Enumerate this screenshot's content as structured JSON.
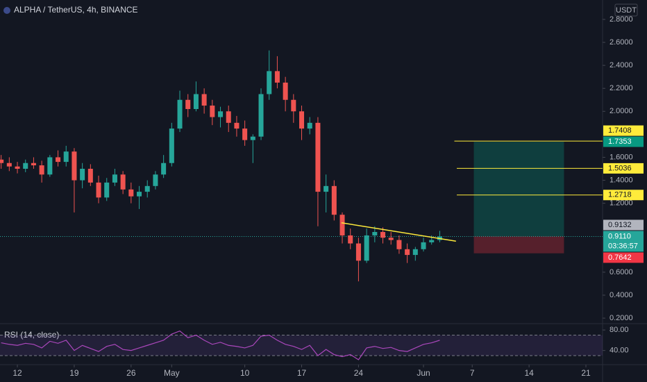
{
  "header": {
    "title": "ALPHA / TetherUS, 4h, BINANCE",
    "currency": "USDT"
  },
  "chart_data": {
    "type": "candlestick",
    "x": [
      -2,
      -1,
      0,
      1,
      2,
      3,
      4,
      5,
      6,
      7,
      8,
      9,
      10,
      11,
      12,
      13,
      14,
      15,
      16,
      17,
      18,
      19,
      20,
      21,
      22,
      23,
      24,
      25,
      26,
      27,
      28,
      29,
      30,
      31,
      32,
      33,
      34,
      35,
      36,
      37,
      38,
      39,
      40,
      41,
      42,
      43,
      44,
      45,
      46,
      47,
      48,
      49,
      50,
      51,
      52
    ],
    "open": [
      1.58,
      1.55,
      1.52,
      1.5,
      1.55,
      1.53,
      1.45,
      1.6,
      1.56,
      1.65,
      1.4,
      1.5,
      1.38,
      1.25,
      1.38,
      1.45,
      1.32,
      1.26,
      1.3,
      1.35,
      1.45,
      1.55,
      1.85,
      2.1,
      2.02,
      2.15,
      2.05,
      1.95,
      2.0,
      1.9,
      1.85,
      1.75,
      1.78,
      2.15,
      2.35,
      2.25,
      2.1,
      2.0,
      1.85,
      1.9,
      1.3,
      1.35,
      1.1,
      0.92,
      0.85,
      0.7,
      0.92,
      0.95,
      0.9,
      0.88,
      0.8,
      0.75,
      0.8,
      0.86,
      0.88
    ],
    "high": [
      1.62,
      1.6,
      1.56,
      1.58,
      1.6,
      1.57,
      1.62,
      1.66,
      1.7,
      1.68,
      1.55,
      1.54,
      1.44,
      1.42,
      1.5,
      1.48,
      1.38,
      1.35,
      1.4,
      1.48,
      1.62,
      1.9,
      2.18,
      2.15,
      2.26,
      2.2,
      2.1,
      2.04,
      2.05,
      1.96,
      1.92,
      1.8,
      2.2,
      2.53,
      2.48,
      2.3,
      2.15,
      2.05,
      1.95,
      1.95,
      1.45,
      1.4,
      1.12,
      0.98,
      0.9,
      0.98,
      1.0,
      0.99,
      0.95,
      0.92,
      0.85,
      0.82,
      0.9,
      0.92,
      0.96
    ],
    "low": [
      1.5,
      1.48,
      1.46,
      1.47,
      1.5,
      1.38,
      1.43,
      1.52,
      1.52,
      1.12,
      1.33,
      1.35,
      1.2,
      1.22,
      1.35,
      1.28,
      1.2,
      1.15,
      1.25,
      1.32,
      1.42,
      1.52,
      1.82,
      1.95,
      2.0,
      1.98,
      1.88,
      1.86,
      1.82,
      1.78,
      1.7,
      1.55,
      1.75,
      2.1,
      2.2,
      2.0,
      1.9,
      1.75,
      1.8,
      1.0,
      1.12,
      1.05,
      0.85,
      0.8,
      0.52,
      0.68,
      0.86,
      0.85,
      0.84,
      0.76,
      0.68,
      0.7,
      0.78,
      0.84,
      0.86
    ],
    "close": [
      1.55,
      1.52,
      1.5,
      1.55,
      1.53,
      1.45,
      1.6,
      1.56,
      1.65,
      1.4,
      1.5,
      1.38,
      1.25,
      1.38,
      1.45,
      1.32,
      1.26,
      1.3,
      1.35,
      1.45,
      1.55,
      1.85,
      2.1,
      2.02,
      2.15,
      2.05,
      1.95,
      2.0,
      1.9,
      1.85,
      1.75,
      1.78,
      2.15,
      2.35,
      2.25,
      2.1,
      2.0,
      1.85,
      1.9,
      1.3,
      1.35,
      1.1,
      0.92,
      0.85,
      0.7,
      0.92,
      0.95,
      0.9,
      0.88,
      0.8,
      0.75,
      0.8,
      0.86,
      0.88,
      0.911
    ],
    "up_color": "#26a69a",
    "down_color": "#ef5350",
    "xlim": [
      -2.14,
      72.05
    ],
    "xticks": [
      {
        "value": 0,
        "label": "12"
      },
      {
        "value": 7,
        "label": "19"
      },
      {
        "value": 14,
        "label": "26"
      },
      {
        "value": 19,
        "label": "May"
      },
      {
        "value": 28,
        "label": "10"
      },
      {
        "value": 35,
        "label": "17"
      },
      {
        "value": 42,
        "label": "24"
      },
      {
        "value": 50,
        "label": "Jun"
      },
      {
        "value": 56,
        "label": "7"
      },
      {
        "value": 63,
        "label": "14"
      },
      {
        "value": 70,
        "label": "21"
      }
    ],
    "ylim": [
      0.158,
      2.969
    ],
    "yticks": [
      {
        "value": 0.2,
        "label": "0.2000"
      },
      {
        "value": 0.4,
        "label": "0.4000"
      },
      {
        "value": 0.6,
        "label": "0.6000"
      },
      {
        "value": 1.2,
        "label": "1.2000"
      },
      {
        "value": 1.4,
        "label": "1.4000"
      },
      {
        "value": 1.6,
        "label": "1.6000"
      },
      {
        "value": 2.0,
        "label": "2.0000"
      },
      {
        "value": 2.2,
        "label": "2.2000"
      },
      {
        "value": 2.4,
        "label": "2.4000"
      },
      {
        "value": 2.6,
        "label": "2.6000"
      },
      {
        "value": 2.8,
        "label": "2.8000"
      }
    ],
    "last_price": {
      "value": 0.911,
      "label": "0.9110"
    },
    "countdown": "03:36:57",
    "trendline": {
      "x": [
        39.9,
        54.0
      ],
      "y": [
        1.03,
        0.87
      ],
      "color": "#ffeb3b"
    },
    "levels": [
      {
        "x": 53.8,
        "value": 1.7408,
        "label": "1.7408"
      },
      {
        "x": 54.1,
        "value": 1.5036,
        "label": "1.5036"
      },
      {
        "x": 54.1,
        "value": 1.2718,
        "label": "1.2718"
      }
    ],
    "level_color": "#ffeb3b",
    "position": {
      "x": [
        56.2,
        67.3
      ],
      "target": {
        "value": 1.7353,
        "label": "1.7353"
      },
      "entry": {
        "value": 0.9132,
        "label": "0.9132"
      },
      "stop": {
        "value": 0.7642,
        "label": "0.7642"
      },
      "profit_color": "#089981",
      "loss_color": "#f23645"
    },
    "rsi": {
      "title": "RSI (14, close)",
      "color": "#ab47bc",
      "values": [
        55,
        52,
        50,
        54,
        52,
        45,
        58,
        54,
        60,
        40,
        50,
        44,
        38,
        48,
        52,
        42,
        40,
        45,
        50,
        55,
        60,
        72,
        78,
        65,
        70,
        60,
        52,
        56,
        50,
        48,
        45,
        50,
        68,
        70,
        60,
        52,
        48,
        42,
        50,
        30,
        42,
        32,
        28,
        32,
        22,
        45,
        48,
        44,
        46,
        40,
        38,
        45,
        52,
        55,
        60
      ],
      "ylim": [
        12.4,
        91
      ],
      "yticks": [
        {
          "value": 80,
          "label": "80.00"
        },
        {
          "value": 40,
          "label": "40.00"
        }
      ],
      "bands": [
        70,
        30
      ]
    }
  }
}
